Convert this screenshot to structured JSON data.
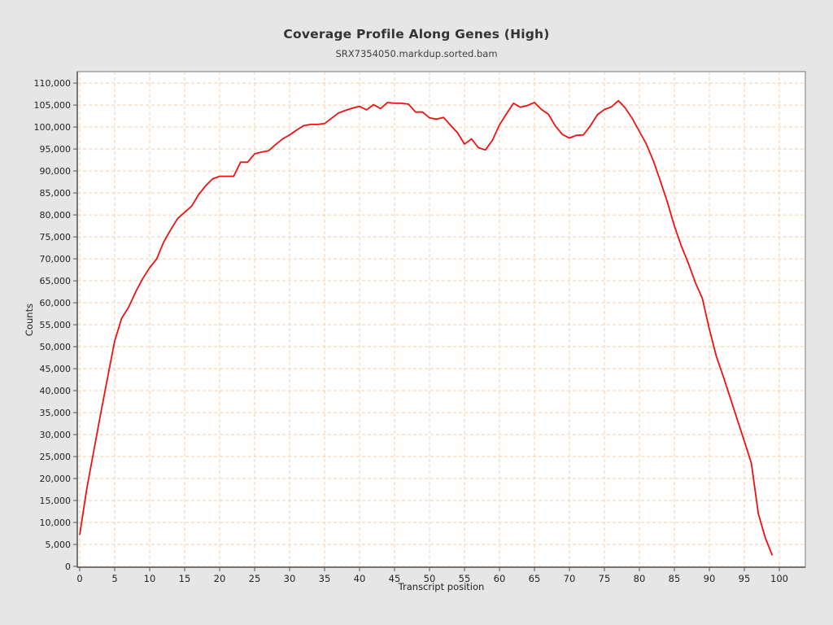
{
  "page": {
    "bg": "#e6e6e6"
  },
  "header": {
    "title": "Coverage Profile Along Genes (High)",
    "subtitle": "SRX7354050.markdup.sorted.bam"
  },
  "chart_data": {
    "type": "line",
    "title": "Coverage Profile Along Genes (High)",
    "subtitle": "SRX7354050.markdup.sorted.bam",
    "xlabel": "Transcript position",
    "ylabel": "Counts",
    "xlim": [
      0,
      100
    ],
    "ylim": [
      0,
      110000
    ],
    "grid": true,
    "legend_position": "none",
    "line_color": "#ee1111",
    "grid_color": "#f8cda5",
    "plot_bg": "#ffffff",
    "axis_color": "#555555",
    "frame_color": "#8a8a8a",
    "tick_label_color": "#222222",
    "x_ticks": [
      0,
      5,
      10,
      15,
      20,
      25,
      30,
      35,
      40,
      45,
      50,
      55,
      60,
      65,
      70,
      75,
      80,
      85,
      90,
      95,
      100
    ],
    "y_ticks": [
      0,
      5000,
      10000,
      15000,
      20000,
      25000,
      30000,
      35000,
      40000,
      45000,
      50000,
      55000,
      60000,
      65000,
      70000,
      75000,
      80000,
      85000,
      90000,
      95000,
      100000,
      105000,
      110000
    ],
    "x": [
      0,
      1,
      2,
      3,
      4,
      5,
      6,
      7,
      8,
      9,
      10,
      11,
      12,
      13,
      14,
      15,
      16,
      17,
      18,
      19,
      20,
      21,
      22,
      23,
      24,
      25,
      26,
      27,
      28,
      29,
      30,
      31,
      32,
      33,
      34,
      35,
      36,
      37,
      38,
      39,
      40,
      41,
      42,
      43,
      44,
      45,
      46,
      47,
      48,
      49,
      50,
      51,
      52,
      53,
      54,
      55,
      56,
      57,
      58,
      59,
      60,
      61,
      62,
      63,
      64,
      65,
      66,
      67,
      68,
      69,
      70,
      71,
      72,
      73,
      74,
      75,
      76,
      77,
      78,
      79,
      80,
      81,
      82,
      83,
      84,
      85,
      86,
      87,
      88,
      89,
      90,
      91,
      92,
      93,
      94,
      95,
      96,
      97,
      98,
      99
    ],
    "values": [
      7200,
      17600,
      26200,
      34800,
      43100,
      51300,
      56500,
      59000,
      62500,
      65500,
      68000,
      70000,
      73800,
      76600,
      79200,
      80600,
      82000,
      84600,
      86600,
      88200,
      88800,
      88800,
      88800,
      92000,
      92000,
      93900,
      94300,
      94600,
      96000,
      97300,
      98200,
      99300,
      100300,
      100600,
      100600,
      100800,
      102000,
      103200,
      103800,
      104300,
      104700,
      103900,
      105100,
      104200,
      105600,
      105400,
      105400,
      105200,
      103400,
      103400,
      102100,
      101800,
      102200,
      100400,
      98700,
      96100,
      97300,
      95300,
      94800,
      97000,
      100500,
      103000,
      105400,
      104500,
      104900,
      105600,
      104000,
      102900,
      100200,
      98300,
      97500,
      98100,
      98200,
      100300,
      102800,
      104000,
      104600,
      106000,
      104300,
      101900,
      99000,
      96100,
      92300,
      87700,
      82900,
      77500,
      72900,
      69000,
      64600,
      61000,
      54000,
      47800,
      43200,
      38300,
      33400,
      28500,
      23500,
      12000,
      6500,
      2500
    ]
  }
}
